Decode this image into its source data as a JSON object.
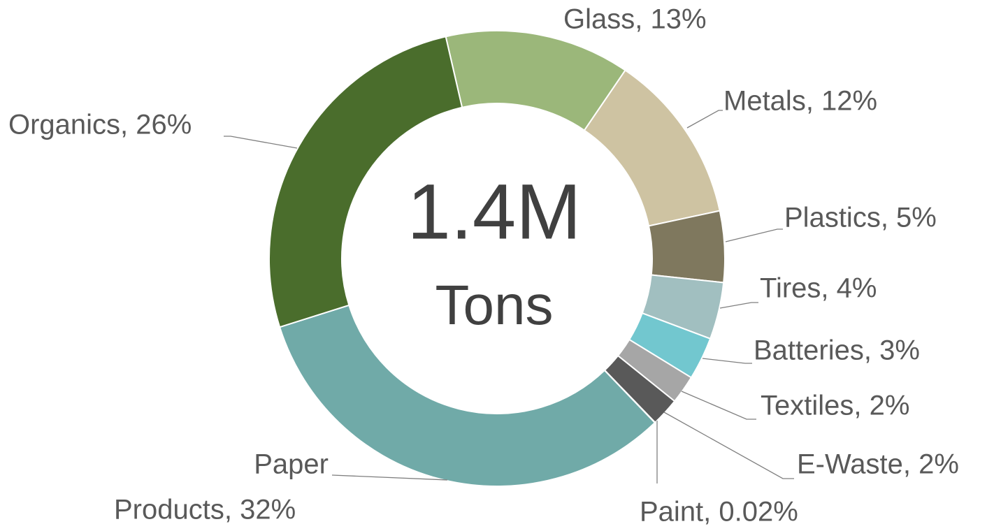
{
  "chart_data": {
    "type": "donut",
    "center_text": [
      "1.4M",
      "Tons"
    ],
    "values": [
      13,
      12,
      5,
      4,
      3,
      2,
      2,
      0.02,
      32,
      26
    ],
    "value_labels": [
      [
        "Glass, 13%"
      ],
      [
        "Metals, 12%"
      ],
      [
        "Plastics, 5%"
      ],
      [
        "Tires, 4%"
      ],
      [
        "Batteries, 3%"
      ],
      [
        "Textiles, 2%"
      ],
      [
        "E-Waste, 2%"
      ],
      [
        "Paint, 0.02%"
      ],
      [
        "Paper",
        "Products, 32%"
      ],
      [
        "Organics, 26%"
      ]
    ],
    "colors": [
      "#9bb77a",
      "#cec3a2",
      "#7f785e",
      "#a1bfc0",
      "#72c7cf",
      "#a6a6a6",
      "#595959",
      "#3a3a3a",
      "#70aaa8",
      "#4a6d2c"
    ]
  }
}
